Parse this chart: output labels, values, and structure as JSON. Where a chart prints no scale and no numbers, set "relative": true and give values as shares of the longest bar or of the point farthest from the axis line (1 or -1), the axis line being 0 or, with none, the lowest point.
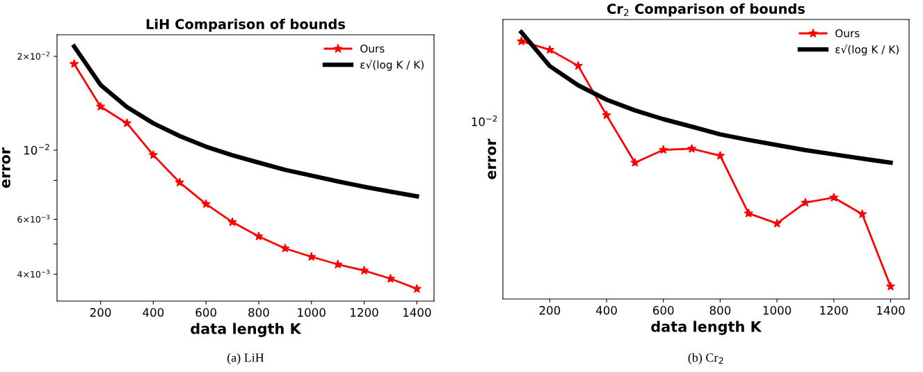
{
  "chart_data": [
    {
      "type": "line",
      "title": "LiH Comparison of bounds",
      "xlabel": "data length K",
      "ylabel": "error",
      "log": "y",
      "legend": "top right",
      "grid": false,
      "x": [
        100,
        200,
        300,
        400,
        500,
        600,
        700,
        800,
        900,
        1000,
        1100,
        1200,
        1300,
        1400
      ],
      "series": [
        {
          "name": "Ours",
          "color": "#ff0000",
          "marker": "star",
          "line_style": "solid",
          "values": [
            0.0189,
            0.0138,
            0.0122,
            0.00965,
            0.00788,
            0.00672,
            0.00588,
            0.00529,
            0.00484,
            0.00455,
            0.0043,
            0.00411,
            0.00387,
            0.00359
          ]
        },
        {
          "name": "ε√(log K / K)",
          "color": "#000000",
          "marker": "none",
          "line_style": "solid",
          "values": [
            0.0215,
            0.0162,
            0.01375,
            0.0122,
            0.0111,
            0.01026,
            0.00963,
            0.00912,
            0.00865,
            0.00829,
            0.00794,
            0.00763,
            0.00736,
            0.00711
          ]
        }
      ],
      "xlim": [
        35,
        1465
      ],
      "xticks": [
        200,
        400,
        600,
        800,
        1000,
        1200,
        1400
      ],
      "ylim": [
        0.00328,
        0.02345
      ],
      "yticks": [
        {
          "value": 0.02,
          "label": "2×10$^{−2}$"
        },
        {
          "value": 0.01,
          "label": "10$^{−2}$"
        },
        {
          "value": 0.008,
          "label": null
        },
        {
          "value": 0.006,
          "label": "6×10$^{−3}$"
        },
        {
          "value": 0.005,
          "label": null
        },
        {
          "value": 0.004,
          "label": "4×10$^{−3}$"
        }
      ],
      "annotations": [
        "(a) LiH"
      ]
    },
    {
      "type": "line",
      "title": "Cr$_{2}$ Comparison of bounds",
      "xlabel": "data length K",
      "ylabel": "error",
      "legend": "top right",
      "grid": false,
      "x": [
        100,
        200,
        300,
        400,
        500,
        600,
        700,
        800,
        900,
        1000,
        1100,
        1200,
        1300,
        1400
      ],
      "series": [
        {
          "name": "Ours",
          "color": "#ff0000",
          "marker": "star",
          "line_style": "solid",
          "values": [
            0.966,
            0.934,
            0.874,
            0.689,
            0.511,
            0.559,
            0.563,
            0.537,
            0.321,
            0.283,
            0.361,
            0.38,
            0.318,
            0.047
          ]
        },
        {
          "name": "ε√(log K / K)",
          "color": "#000000",
          "marker": "none",
          "line_style": "solid",
          "values": [
            1,
            0.873,
            0.801,
            0.747,
            0.707,
            0.674,
            0.646,
            0.617,
            0.596,
            0.577,
            0.558,
            0.542,
            0.526,
            0.511
          ]
        }
      ],
      "relative": true,
      "xlim": [
        35,
        1465
      ],
      "xticks": [
        200,
        400,
        600,
        800,
        1000,
        1200,
        1400
      ],
      "annotations": [
        "10$^{−2}$",
        "(b) Cr$_{2}$"
      ]
    }
  ]
}
